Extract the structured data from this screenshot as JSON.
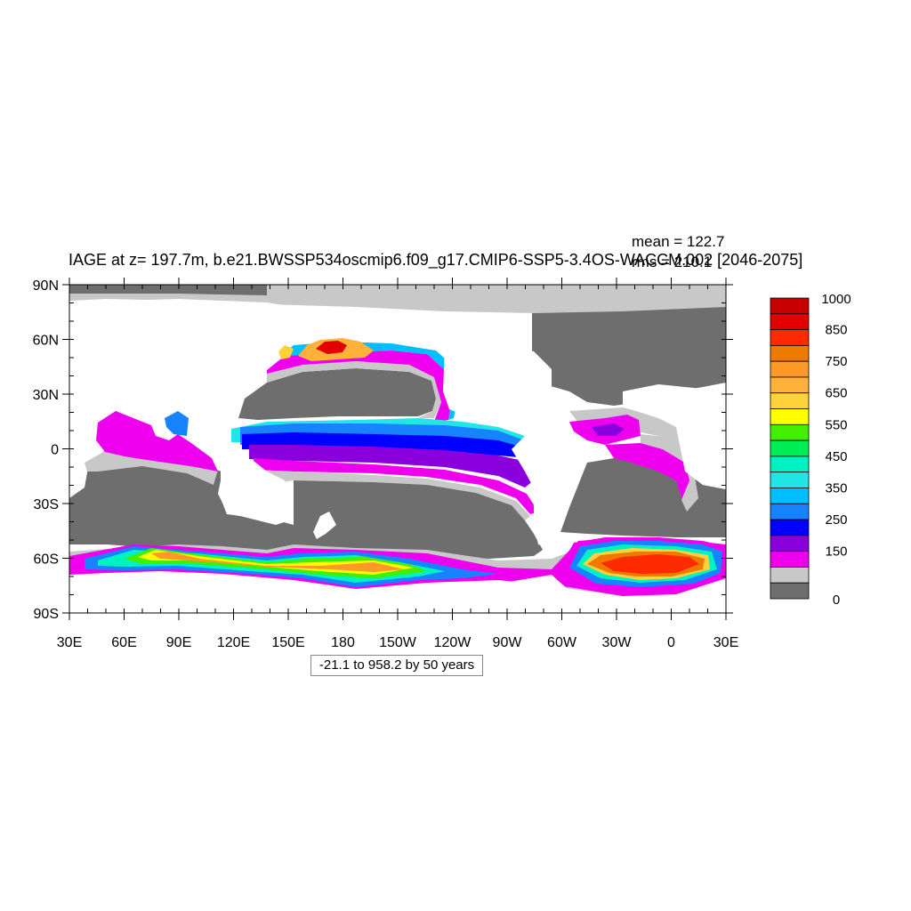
{
  "title": "IAGE at z= 197.7m, b.e21.BWSSP534oscmip6.f09_g17.CMIP6-SSP5-3.4OS-WACCM.002 [2046-2075]",
  "stats": {
    "mean": "mean = 122.7",
    "rms": "rms = 210.1"
  },
  "info_box": "-21.1 to 958.2 by 50 years",
  "axes": {
    "lat_labels": [
      "90N",
      "60N",
      "30N",
      "0",
      "30S",
      "60S",
      "90S"
    ],
    "lon_labels": [
      "30E",
      "60E",
      "90E",
      "120E",
      "150E",
      "180",
      "150W",
      "120W",
      "90W",
      "60W",
      "30W",
      "0",
      "30E"
    ]
  },
  "colorbar": {
    "labels": [
      "1000",
      "850",
      "750",
      "650",
      "550",
      "450",
      "350",
      "250",
      "150",
      "0"
    ],
    "colors": [
      "#c80000",
      "#e20000",
      "#ff2a00",
      "#ee7a00",
      "#ff9a28",
      "#ffb23a",
      "#ffd13a",
      "#ffff00",
      "#44ee00",
      "#00ee55",
      "#00f2c2",
      "#22e6e6",
      "#00bfff",
      "#1783ff",
      "#0000ff",
      "#8a00dd",
      "#ee00ee",
      "#c8c8c8",
      "#6e6e6e"
    ]
  },
  "palette": {
    "land": "#6e6e6e",
    "shelf": "#c8c8c8",
    "young": "#ee00ee",
    "ocean_bg": "#ffffff"
  }
}
